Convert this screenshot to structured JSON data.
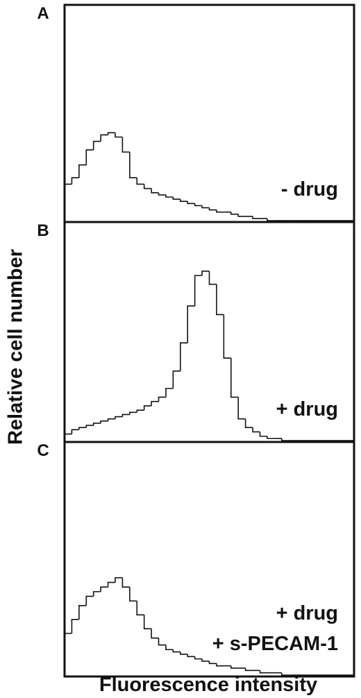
{
  "chart_data": [
    {
      "type": "histogram",
      "panel_label": "A",
      "annotations": [
        "- drug"
      ],
      "ylabel": "Relative cell number",
      "bins": [
        0,
        2.5,
        5,
        7.5,
        10,
        12.5,
        15,
        17.5,
        20,
        22.5,
        25,
        27.5,
        30,
        32.5,
        35,
        37.5,
        40,
        42.5,
        45,
        47.5,
        50,
        52.5,
        55,
        57.5,
        60,
        62.5,
        65,
        67.5,
        70,
        72.5,
        75,
        77.5,
        80,
        82.5,
        85,
        87.5,
        90,
        92.5,
        95,
        97.5,
        100
      ],
      "values": [
        17,
        20,
        26,
        33,
        37,
        40,
        41,
        39,
        32,
        20,
        17,
        15,
        13,
        12,
        11,
        10,
        9,
        8,
        7,
        6,
        5,
        4,
        4,
        3,
        2,
        2,
        1,
        1,
        0,
        0,
        0,
        0,
        0,
        0,
        0,
        0,
        0,
        0,
        0,
        0
      ],
      "xlim": [
        0,
        100
      ],
      "ylim": [
        0,
        100
      ],
      "color": "#111111"
    },
    {
      "type": "histogram",
      "panel_label": "B",
      "annotations": [
        "+ drug"
      ],
      "bins": [
        0,
        2.5,
        5,
        7.5,
        10,
        12.5,
        15,
        17.5,
        20,
        22.5,
        25,
        27.5,
        30,
        32.5,
        35,
        37.5,
        40,
        42.5,
        45,
        47.5,
        50,
        52.5,
        55,
        57.5,
        60,
        62.5,
        65,
        67.5,
        70,
        72.5,
        75,
        77.5,
        80,
        82.5,
        85,
        87.5,
        90,
        92.5,
        95,
        97.5,
        100
      ],
      "values": [
        3,
        5,
        6,
        7,
        8,
        9,
        10,
        11,
        12,
        13,
        14,
        16,
        18,
        20,
        24,
        32,
        45,
        62,
        76,
        78,
        72,
        58,
        38,
        20,
        10,
        6,
        4,
        2,
        1,
        1,
        0,
        0,
        0,
        0,
        0,
        0,
        0,
        0,
        0,
        0
      ],
      "xlim": [
        0,
        100
      ],
      "ylim": [
        0,
        100
      ],
      "color": "#111111"
    },
    {
      "type": "histogram",
      "panel_label": "C",
      "annotations": [
        "+ drug",
        "+ s-PECAM-1"
      ],
      "xlabel": "Fluorescence intensity",
      "bins": [
        0,
        2.5,
        5,
        7.5,
        10,
        12.5,
        15,
        17.5,
        20,
        22.5,
        25,
        27.5,
        30,
        32.5,
        35,
        37.5,
        40,
        42.5,
        45,
        47.5,
        50,
        52.5,
        55,
        57.5,
        60,
        62.5,
        65,
        67.5,
        70,
        72.5,
        75,
        77.5,
        80,
        82.5,
        85,
        87.5,
        90,
        92.5,
        95,
        97.5,
        100
      ],
      "values": [
        18,
        24,
        30,
        34,
        36,
        38,
        40,
        42,
        38,
        32,
        26,
        20,
        16,
        13,
        11,
        10,
        9,
        8,
        7,
        6,
        5,
        4,
        4,
        3,
        3,
        2,
        2,
        1,
        1,
        1,
        0,
        0,
        0,
        0,
        0,
        0,
        0,
        0,
        0,
        0
      ],
      "xlim": [
        0,
        100
      ],
      "ylim": [
        0,
        100
      ],
      "color": "#111111"
    }
  ]
}
